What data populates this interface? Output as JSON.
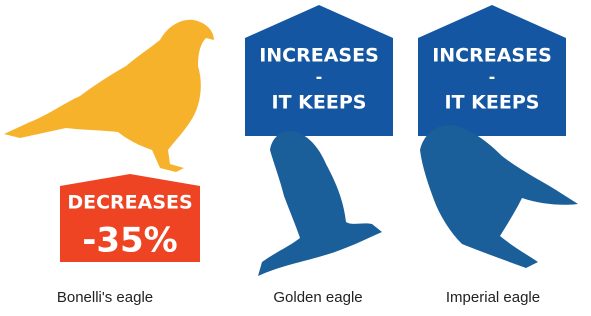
{
  "panels": [
    {
      "status": [
        "DECREASES",
        "-35%"
      ],
      "name": "Bonelli's eagle"
    },
    {
      "status": [
        "INCREASES",
        "-",
        "IT KEEPS"
      ],
      "name": "Golden eagle"
    },
    {
      "status": [
        "INCREASES",
        "-",
        "IT KEEPS"
      ],
      "name": "Imperial eagle"
    }
  ]
}
